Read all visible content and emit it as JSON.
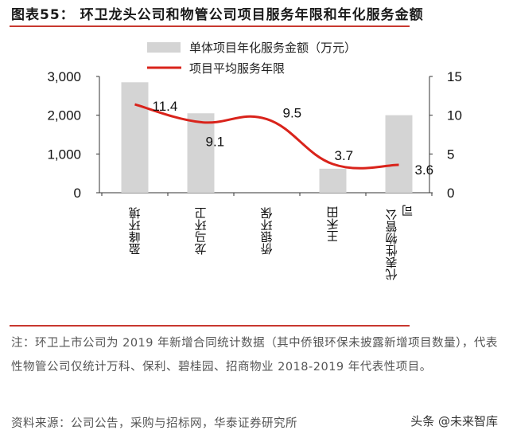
{
  "title": "图表55：  环卫龙头公司和物管公司项目服务年限和年化服务金额",
  "chart_data": {
    "type": "bar+line",
    "categories": [
      "盈峰环境",
      "龙马环卫",
      "侨银环保",
      "王禾田",
      "代表性物管公司"
    ],
    "series": [
      {
        "name": "单体项目年化服务金额（万元）",
        "type": "bar",
        "axis": "left",
        "values": [
          2850,
          2050,
          null,
          620,
          2000
        ]
      },
      {
        "name": "项目平均服务年限",
        "type": "line",
        "axis": "right",
        "values": [
          11.4,
          9.1,
          9.5,
          3.7,
          3.6
        ]
      }
    ],
    "data_labels": [
      "11.4",
      "9.1",
      "9.5",
      "3.7",
      "3.6"
    ],
    "left_axis": {
      "ylim": [
        0,
        3000
      ],
      "ticks": [
        "0",
        "1,000",
        "2,000",
        "3,000"
      ]
    },
    "right_axis": {
      "ylim": [
        0,
        15
      ],
      "ticks": [
        "0",
        "5",
        "10",
        "15"
      ]
    },
    "legend_position": "top",
    "colors": {
      "bar": "#d4d4d4",
      "line": "#d9231b"
    }
  },
  "note": "注：环卫上市公司为 2019 年新增合同统计数据（其中侨银环保未披露新增项目数量），代表性物管公司仅统计万科、保利、碧桂园、招商物业 2018-2019 年代表性项目。",
  "source": "资料来源：公司公告，采购与招标网，华泰证券研究所",
  "watermark": "头条 @未来智库"
}
